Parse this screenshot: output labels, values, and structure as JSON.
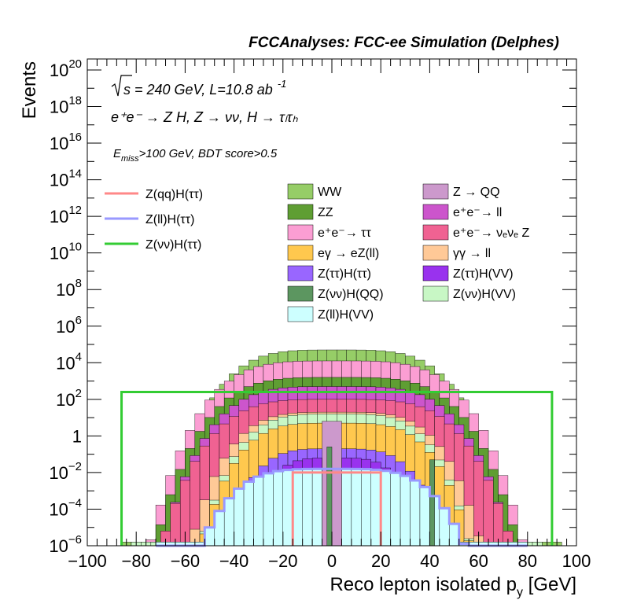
{
  "chart_data": {
    "type": "histogram",
    "title": "FCCAnalyses: FCC-ee Simulation (Delphes)",
    "xlabel": "Reco lepton isolated p",
    "xlabel_sub": "y",
    "xlabel_unit": "[GeV]",
    "ylabel": "Events",
    "xlim": [
      -100,
      100
    ],
    "ylim_log10": [
      -6,
      20.6
    ],
    "ylog": true,
    "bin_width": 4,
    "annotations": {
      "energy_prefix": "s",
      "energy_text": " = 240 GeV, L=10.8 ab",
      "energy_sup": "-1",
      "process": "e⁺e⁻ → Z H, Z → νν, H → τₗτₕ",
      "cuts_E": "E",
      "cuts_sub": "miss",
      "cuts_rest": ">100 GeV, BDT score>0.5"
    },
    "x_ticks": [
      {
        "value": -100,
        "label": "−100"
      },
      {
        "value": -80,
        "label": "−80"
      },
      {
        "value": -60,
        "label": "−60"
      },
      {
        "value": -40,
        "label": "−40"
      },
      {
        "value": -20,
        "label": "−20"
      },
      {
        "value": 0,
        "label": "0"
      },
      {
        "value": 20,
        "label": "20"
      },
      {
        "value": 40,
        "label": "40"
      },
      {
        "value": 60,
        "label": "60"
      },
      {
        "value": 80,
        "label": "80"
      },
      {
        "value": 100,
        "label": "100"
      }
    ],
    "y_ticks": [
      {
        "exp": -6,
        "base": "10",
        "sup": "−6"
      },
      {
        "exp": -4,
        "base": "10",
        "sup": "−4"
      },
      {
        "exp": -2,
        "base": "10",
        "sup": "−2"
      },
      {
        "exp": 0,
        "base": "1",
        "sup": ""
      },
      {
        "exp": 2,
        "base": "10",
        "sup": "2"
      },
      {
        "exp": 4,
        "base": "10",
        "sup": "4"
      },
      {
        "exp": 6,
        "base": "10",
        "sup": "6"
      },
      {
        "exp": 8,
        "base": "10",
        "sup": "8"
      },
      {
        "exp": 10,
        "base": "10",
        "sup": "10"
      },
      {
        "exp": 12,
        "base": "10",
        "sup": "12"
      },
      {
        "exp": 14,
        "base": "10",
        "sup": "14"
      },
      {
        "exp": 16,
        "base": "10",
        "sup": "16"
      },
      {
        "exp": 18,
        "base": "10",
        "sup": "18"
      },
      {
        "exp": 20,
        "base": "10",
        "sup": "20"
      }
    ],
    "stack_layers": [
      {
        "name": "WW",
        "color": "#96cd67",
        "profile": [
          -86,
          94,
          4.7,
          30,
          2.0
        ]
      },
      {
        "name": "e⁺e⁻→ ττ",
        "color": "#fb9ed3",
        "profile": [
          -76,
          82,
          4.1,
          12,
          2.0
        ]
      },
      {
        "name": "ZZ",
        "color": "#5f9e33",
        "profile": [
          -72,
          78,
          3.2,
          10,
          2.0
        ]
      },
      {
        "name": "e⁺e⁻→ ll",
        "color": "#cc55cc",
        "profile": [
          -70,
          76,
          2.7,
          10,
          2.0
        ]
      },
      {
        "name": "e⁺e⁻→ νₑνₑ Z",
        "color": "#f06292",
        "profile": [
          -74,
          78,
          2.0,
          10,
          2.0
        ]
      },
      {
        "name": "γγ → ll",
        "color": "#ffc997",
        "profile": [
          -62,
          66,
          1.3,
          10,
          1.6
        ]
      },
      {
        "name": "Z(νν)H(VV)",
        "color": "#c8f7c5",
        "profile": [
          -82,
          84,
          1.2,
          38,
          1.6
        ]
      },
      {
        "name": "eγ → eZ(ll)",
        "color": "#ffc84e",
        "profile": [
          -62,
          64,
          0.7,
          12,
          1.6
        ]
      },
      {
        "name": "Z(ττ)H(ττ)",
        "color": "#9966ff",
        "profile": [
          -54,
          58,
          -0.7,
          14,
          1.0
        ]
      },
      {
        "name": "Z(ττ)H(VV)",
        "color": "#9932ee",
        "profile": [
          -44,
          48,
          -1.2,
          14,
          1.2
        ]
      },
      {
        "name": "Z(ll)H(VV)",
        "color": "#cdffff",
        "profile": [
          -72,
          78,
          -1.8,
          18,
          0.4
        ]
      }
    ],
    "legend_only": [
      {
        "name": "Z → QQ",
        "color": "#cc99cc"
      },
      {
        "name": "Z(νν)H(QQ)",
        "color": "#5c9660"
      }
    ],
    "line_series": [
      {
        "name": "Z(νν)H(ττ)",
        "color": "#33cc33",
        "profile": [
          -86,
          90,
          2.4,
          0,
          3.4
        ]
      },
      {
        "name": "Z(ll)H(ττ)",
        "color": "#9999ff",
        "profile": [
          -72,
          78,
          -1.8,
          18,
          0.4
        ]
      },
      {
        "name": "Z(qq)H(ττ)",
        "color": "#ff8888",
        "profile": [
          -16,
          20,
          -2.0,
          0,
          0
        ]
      }
    ],
    "spikes": [
      {
        "x0": -4,
        "x1": 4,
        "logy": 0.8,
        "color": "#cc99cc"
      },
      {
        "x0": -2,
        "x1": 0,
        "logy": -0.6,
        "color": "#5c9660"
      },
      {
        "x0": 40,
        "x1": 42,
        "logy": -1.3,
        "color": "#5c9660"
      }
    ],
    "legend_left": [
      {
        "name": "Z(qq)H(ττ)",
        "color": "#ff8888"
      },
      {
        "name": "Z(ll)H(ττ)",
        "color": "#9999ff"
      },
      {
        "name": "Z(νν)H(ττ)",
        "color": "#33cc33"
      }
    ],
    "legend_col1": [
      {
        "name": "WW",
        "color": "#96cd67"
      },
      {
        "name": "ZZ",
        "color": "#5f9e33"
      },
      {
        "name": "e⁺e⁻→ ττ",
        "color": "#fb9ed3"
      },
      {
        "name": "eγ → eZ(ll)",
        "color": "#ffc84e"
      },
      {
        "name": "Z(ττ)H(ττ)",
        "color": "#9966ff"
      },
      {
        "name": "Z(νν)H(QQ)",
        "color": "#5c9660"
      },
      {
        "name": "Z(ll)H(VV)",
        "color": "#cdffff"
      }
    ],
    "legend_col2": [
      {
        "name": "Z → QQ",
        "color": "#cc99cc"
      },
      {
        "name": "e⁺e⁻→ ll",
        "color": "#cc55cc"
      },
      {
        "name": "e⁺e⁻→ νₑνₑ Z",
        "color": "#f06292"
      },
      {
        "name": "γγ → ll",
        "color": "#ffc997"
      },
      {
        "name": "Z(ττ)H(VV)",
        "color": "#9932ee"
      },
      {
        "name": "Z(νν)H(VV)",
        "color": "#c8f7c5"
      }
    ]
  }
}
